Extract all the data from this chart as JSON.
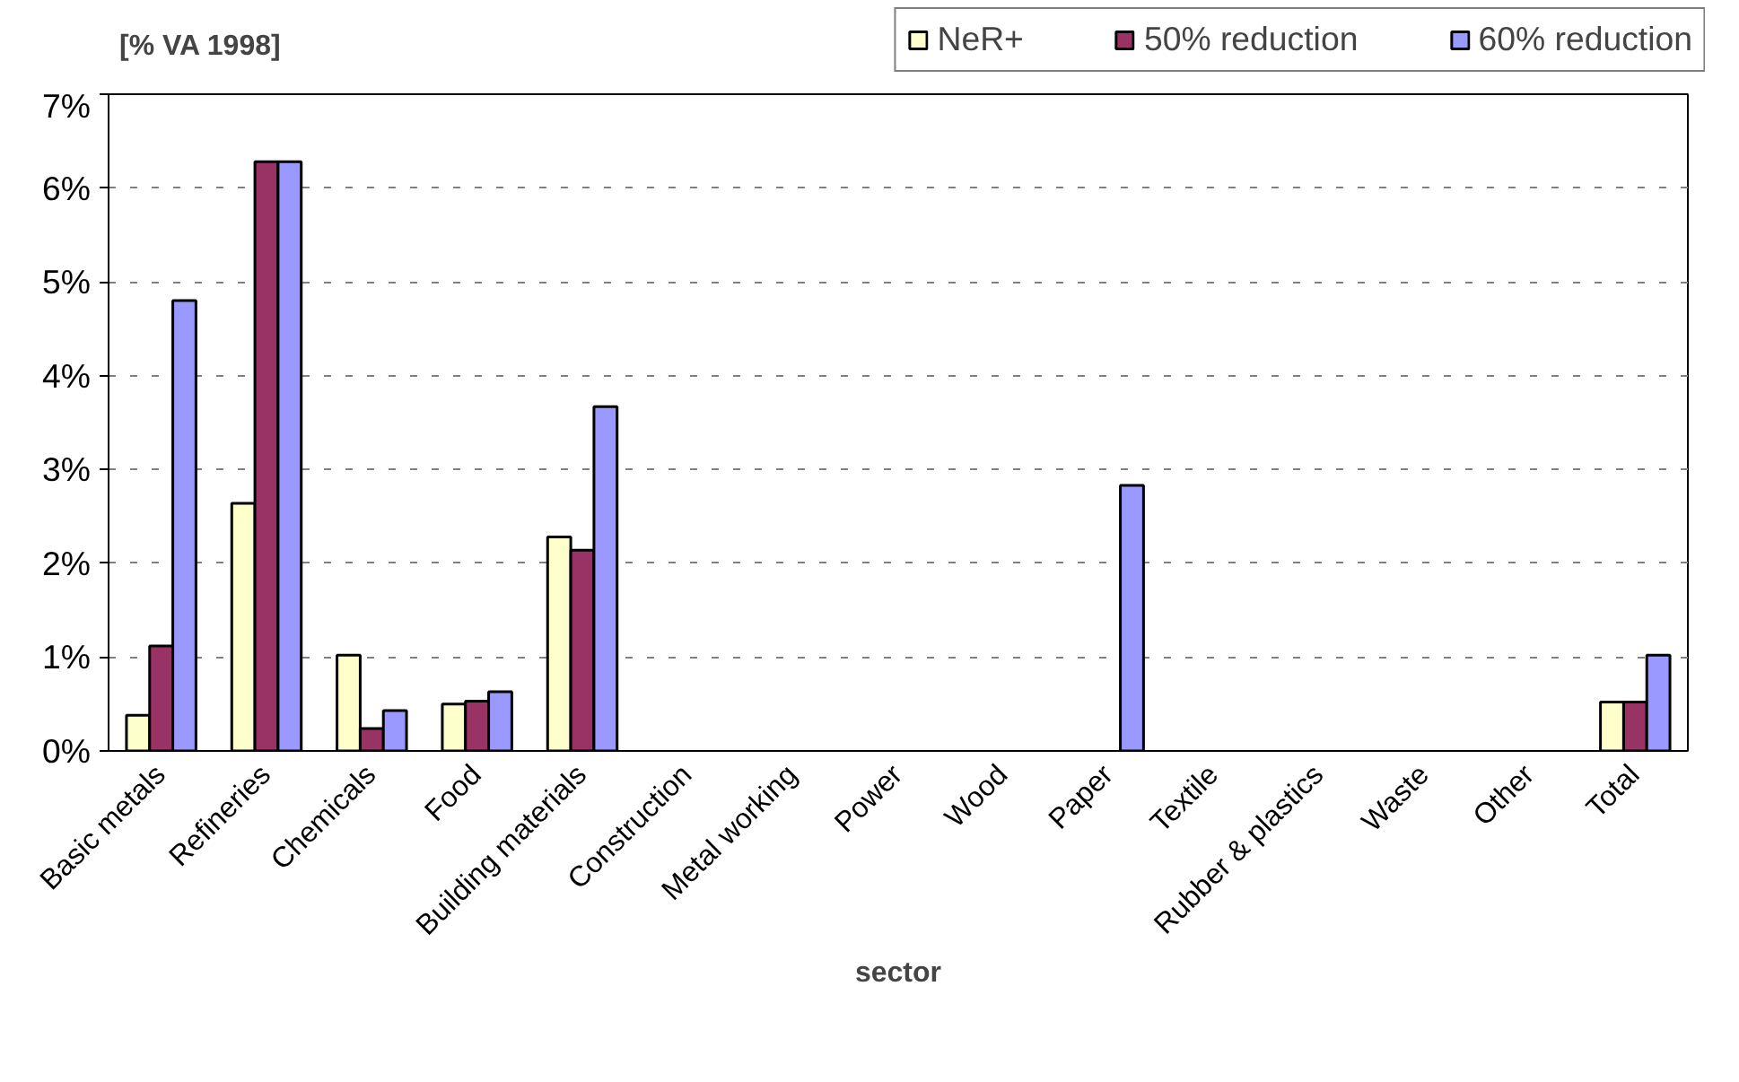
{
  "chart_data": {
    "type": "bar",
    "ylabel": "[% VA 1998]",
    "xlabel": "sector",
    "categories": [
      "Basic metals",
      "Refineries",
      "Chemicals",
      "Food",
      "Building materials",
      "Construction",
      "Metal working",
      "Power",
      "Wood",
      "Paper",
      "Textile",
      "Rubber & plastics",
      "Waste",
      "Other",
      "Total"
    ],
    "series": [
      {
        "name": "NeR+",
        "color": "#ffffcc",
        "values": [
          0.38,
          2.64,
          1.02,
          0.5,
          2.28,
          null,
          null,
          null,
          null,
          null,
          null,
          null,
          null,
          null,
          0.52
        ]
      },
      {
        "name": "50% reduction",
        "color": "#993366",
        "values": [
          1.12,
          6.28,
          0.24,
          0.53,
          2.14,
          null,
          null,
          null,
          null,
          null,
          null,
          null,
          null,
          null,
          0.52
        ]
      },
      {
        "name": "60% reduction",
        "color": "#9999ff",
        "values": [
          4.8,
          6.28,
          0.43,
          0.63,
          3.67,
          null,
          null,
          null,
          null,
          2.83,
          null,
          null,
          null,
          null,
          1.02
        ]
      }
    ],
    "ylim": [
      0,
      7
    ],
    "yticks": [
      {
        "value": 0,
        "label": "0%"
      },
      {
        "value": 1,
        "label": "1%"
      },
      {
        "value": 2,
        "label": "2%"
      },
      {
        "value": 3,
        "label": "3%"
      },
      {
        "value": 4,
        "label": "4%"
      },
      {
        "value": 5,
        "label": "5%"
      },
      {
        "value": 6,
        "label": "6%"
      },
      {
        "value": 7,
        "label": "7%"
      }
    ],
    "grid": "y",
    "legend": "top right"
  }
}
